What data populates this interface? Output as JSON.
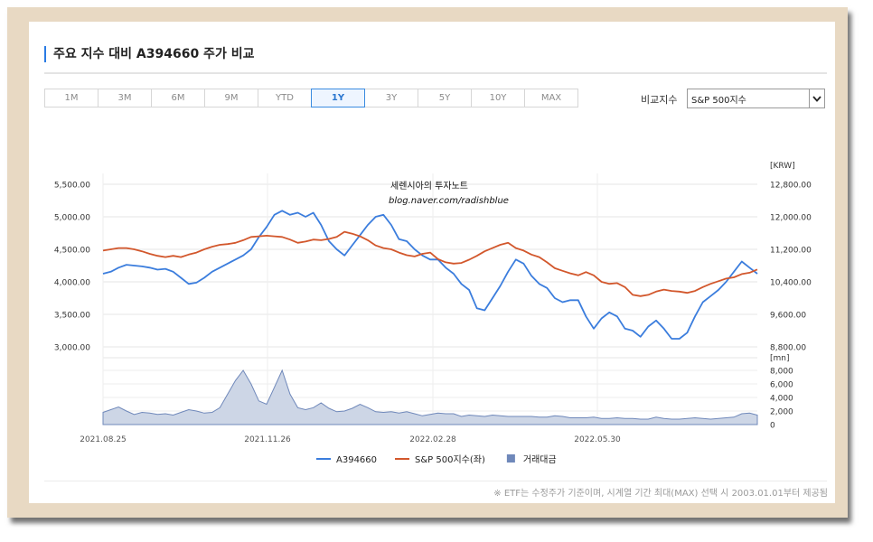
{
  "page_title": "주요 지수 대비 A394660 주가 비교",
  "periods": [
    {
      "label": "1M",
      "active": false
    },
    {
      "label": "3M",
      "active": false
    },
    {
      "label": "6M",
      "active": false
    },
    {
      "label": "9M",
      "active": false
    },
    {
      "label": "YTD",
      "active": false
    },
    {
      "label": "1Y",
      "active": true
    },
    {
      "label": "3Y",
      "active": false
    },
    {
      "label": "5Y",
      "active": false
    },
    {
      "label": "10Y",
      "active": false
    },
    {
      "label": "MAX",
      "active": false
    }
  ],
  "compare": {
    "label": "비교지수",
    "selected": "S&P 500지수"
  },
  "footnote": "※ ETF는 수정주가 기준이며, 시계열 기간 최대(MAX) 선택 시 2003.01.01부터 제공됨",
  "watermark": {
    "line1": "세렌시아의 투자노트",
    "line2": "blog.naver.com/radishblue"
  },
  "colors": {
    "stock": "#3b7ddd",
    "index": "#d2572c",
    "volume_fill": "#cdd6e6",
    "volume_line": "#6f88ba",
    "active_tab": "#2a76cf"
  },
  "chart_data": {
    "type": "line",
    "x_labels": [
      "2021.08.25",
      "2021.11.26",
      "2022.02.28",
      "2022.05.30"
    ],
    "left_axis": {
      "ticks": [
        "5,500.00",
        "5,000.00",
        "4,500.00",
        "4,000.00",
        "3,500.00",
        "3,000.00"
      ],
      "range": [
        3000,
        5500
      ]
    },
    "right_axis": {
      "unit": "[KRW]",
      "ticks": [
        "12,800.00",
        "12,000.00",
        "11,200.00",
        "10,400.00",
        "9,600.00",
        "8,800.00"
      ],
      "range": [
        8800,
        12800
      ]
    },
    "volume_axis": {
      "unit": "[mn]",
      "ticks": [
        "8,000",
        "6,000",
        "4,000",
        "2,000",
        "0"
      ],
      "range": [
        0,
        8000
      ]
    },
    "series": [
      {
        "name": "A394660",
        "axis": "right",
        "color": "#3b7ddd",
        "values": [
          10600,
          10650,
          10750,
          10820,
          10800,
          10780,
          10750,
          10700,
          10720,
          10650,
          10500,
          10350,
          10380,
          10500,
          10650,
          10750,
          10850,
          10950,
          11050,
          11200,
          11500,
          11750,
          12050,
          12150,
          12050,
          12100,
          12000,
          12100,
          11800,
          11400,
          11200,
          11050,
          11300,
          11550,
          11800,
          12000,
          12050,
          11800,
          11450,
          11400,
          11200,
          11050,
          10950,
          10950,
          10750,
          10600,
          10350,
          10200,
          9750,
          9700,
          10000,
          10300,
          10650,
          10950,
          10850,
          10550,
          10350,
          10250,
          10000,
          9900,
          9950,
          9950,
          9550,
          9250,
          9500,
          9650,
          9550,
          9250,
          9200,
          9050,
          9300,
          9450,
          9250,
          9000,
          9000,
          9150,
          9550,
          9900,
          10050,
          10200,
          10400,
          10650,
          10900,
          10750,
          10600
        ]
      },
      {
        "name": "S&P 500지수(좌)",
        "axis": "left",
        "color": "#d2572c",
        "values": [
          4480,
          4500,
          4520,
          4520,
          4500,
          4470,
          4430,
          4400,
          4380,
          4400,
          4380,
          4420,
          4450,
          4500,
          4540,
          4570,
          4580,
          4600,
          4640,
          4690,
          4700,
          4710,
          4700,
          4690,
          4650,
          4600,
          4620,
          4650,
          4640,
          4660,
          4690,
          4770,
          4740,
          4700,
          4640,
          4560,
          4520,
          4500,
          4450,
          4410,
          4390,
          4430,
          4450,
          4350,
          4300,
          4280,
          4290,
          4340,
          4400,
          4470,
          4520,
          4570,
          4600,
          4520,
          4480,
          4420,
          4380,
          4300,
          4210,
          4170,
          4130,
          4100,
          4150,
          4100,
          4000,
          3970,
          3980,
          3920,
          3800,
          3780,
          3800,
          3850,
          3880,
          3860,
          3850,
          3830,
          3860,
          3920,
          3970,
          4010,
          4050,
          4070,
          4120,
          4140,
          4190
        ]
      },
      {
        "name": "거래대금",
        "axis": "volume",
        "color": "#6f88ba",
        "values": [
          1800,
          2200,
          2600,
          2000,
          1500,
          1800,
          1700,
          1500,
          1600,
          1400,
          1800,
          2200,
          2000,
          1700,
          1800,
          2500,
          4500,
          6500,
          8000,
          6000,
          3500,
          3000,
          5500,
          8000,
          4500,
          2500,
          2200,
          2500,
          3200,
          2400,
          1900,
          2000,
          2400,
          3000,
          2500,
          1900,
          1800,
          1900,
          1700,
          1900,
          1600,
          1300,
          1500,
          1700,
          1600,
          1600,
          1200,
          1400,
          1300,
          1200,
          1400,
          1300,
          1200,
          1200,
          1200,
          1200,
          1100,
          1100,
          1300,
          1200,
          1000,
          1000,
          1000,
          1100,
          900,
          900,
          1000,
          900,
          900,
          800,
          800,
          1100,
          900,
          800,
          800,
          900,
          1000,
          900,
          800,
          900,
          1000,
          1100,
          1600,
          1700,
          1400
        ]
      }
    ]
  }
}
